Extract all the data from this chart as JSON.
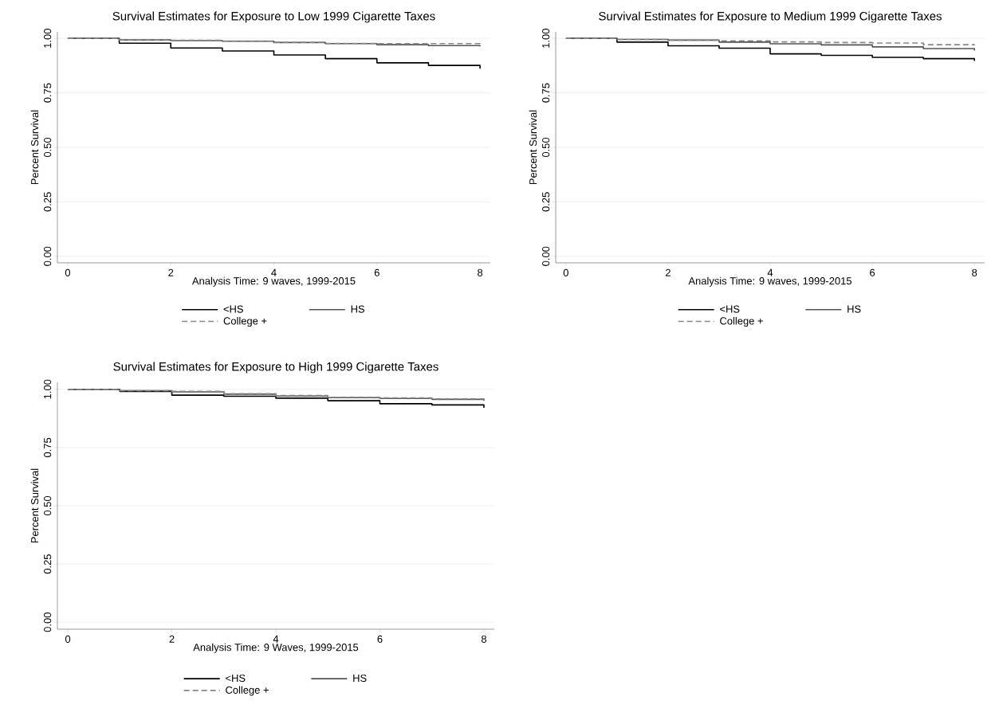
{
  "chart_data": [
    {
      "type": "step",
      "title": "Survival Estimates for Exposure to Low 1999 Cigarette Taxes",
      "xlabel": "Analysis Time: 9 waves, 1999-2015",
      "ylabel": "Percent Survival",
      "x": [
        0,
        1,
        2,
        3,
        4,
        5,
        6,
        7,
        8
      ],
      "xlim": [
        -0.2,
        8.2
      ],
      "xticks": [
        0,
        2,
        4,
        6,
        8
      ],
      "ylim": [
        -0.03,
        1.03
      ],
      "yticks": [
        {
          "value": 0,
          "label": "0.00"
        },
        {
          "value": 0.25,
          "label": "0.25"
        },
        {
          "value": 0.5,
          "label": "0.50"
        },
        {
          "value": 0.75,
          "label": "0.75"
        },
        {
          "value": 1,
          "label": "1.00"
        }
      ],
      "grid": "y",
      "legend": "bottom",
      "marker": "none",
      "series": [
        {
          "name": "<HS",
          "color": "#000000",
          "line_style": "solid",
          "values": [
            1,
            0.978,
            0.956,
            0.942,
            0.924,
            0.907,
            0.888,
            0.876,
            0.861
          ]
        },
        {
          "name": "HS",
          "color": "#555555",
          "line_style": "solid",
          "values": [
            1,
            0.993,
            0.99,
            0.987,
            0.981,
            0.976,
            0.971,
            0.967,
            0.963
          ]
        },
        {
          "name": "College +",
          "color": "#888888",
          "line_style": "dashed",
          "values": [
            1,
            0.994,
            0.991,
            0.988,
            0.982,
            0.977,
            0.976,
            0.976,
            0.975
          ]
        }
      ]
    },
    {
      "type": "step",
      "title": "Survival Estimates for Exposure to Medium 1999 Cigarette Taxes",
      "xlabel": "Analysis Time: 9 waves, 1999-2015",
      "ylabel": "Percent Survival",
      "x": [
        0,
        1,
        2,
        3,
        4,
        5,
        6,
        7,
        8
      ],
      "xlim": [
        -0.2,
        8.2
      ],
      "xticks": [
        0,
        2,
        4,
        6,
        8
      ],
      "ylim": [
        -0.03,
        1.03
      ],
      "yticks": [
        {
          "value": 0,
          "label": "0.00"
        },
        {
          "value": 0.25,
          "label": "0.25"
        },
        {
          "value": 0.5,
          "label": "0.50"
        },
        {
          "value": 0.75,
          "label": "0.75"
        },
        {
          "value": 1,
          "label": "1.00"
        }
      ],
      "grid": "y",
      "legend": "bottom",
      "marker": "none",
      "series": [
        {
          "name": "<HS",
          "color": "#000000",
          "line_style": "solid",
          "values": [
            1,
            0.983,
            0.966,
            0.955,
            0.929,
            0.922,
            0.913,
            0.907,
            0.897
          ]
        },
        {
          "name": "HS",
          "color": "#555555",
          "line_style": "solid",
          "values": [
            1,
            0.995,
            0.992,
            0.983,
            0.975,
            0.97,
            0.961,
            0.953,
            0.944
          ]
        },
        {
          "name": "College +",
          "color": "#888888",
          "line_style": "dashed",
          "values": [
            1,
            0.995,
            0.992,
            0.989,
            0.984,
            0.981,
            0.979,
            0.971,
            0.969
          ]
        }
      ]
    },
    {
      "type": "step",
      "title": "Survival Estimates for Exposure to High 1999 Cigarette Taxes",
      "xlabel": "Analysis Time: 9 Waves, 1999-2015",
      "ylabel": "Percent Survival",
      "x": [
        0,
        1,
        2,
        3,
        4,
        5,
        6,
        7,
        8
      ],
      "xlim": [
        -0.2,
        8.2
      ],
      "xticks": [
        0,
        2,
        4,
        6,
        8
      ],
      "ylim": [
        -0.03,
        1.03
      ],
      "yticks": [
        {
          "value": 0,
          "label": "0.00"
        },
        {
          "value": 0.25,
          "label": "0.25"
        },
        {
          "value": 0.5,
          "label": "0.50"
        },
        {
          "value": 0.75,
          "label": "0.75"
        },
        {
          "value": 1,
          "label": "1.00"
        }
      ],
      "grid": "y",
      "legend": "bottom",
      "marker": "none",
      "series": [
        {
          "name": "<HS",
          "color": "#000000",
          "line_style": "solid",
          "values": [
            1,
            0.991,
            0.975,
            0.97,
            0.962,
            0.951,
            0.938,
            0.933,
            0.921
          ]
        },
        {
          "name": "HS",
          "color": "#555555",
          "line_style": "solid",
          "values": [
            1,
            0.994,
            0.989,
            0.979,
            0.971,
            0.964,
            0.961,
            0.957,
            0.951
          ]
        },
        {
          "name": "College +",
          "color": "#888888",
          "line_style": "dashed",
          "values": [
            1,
            0.994,
            0.991,
            0.981,
            0.973,
            0.966,
            0.963,
            0.959,
            0.954
          ]
        }
      ]
    }
  ]
}
